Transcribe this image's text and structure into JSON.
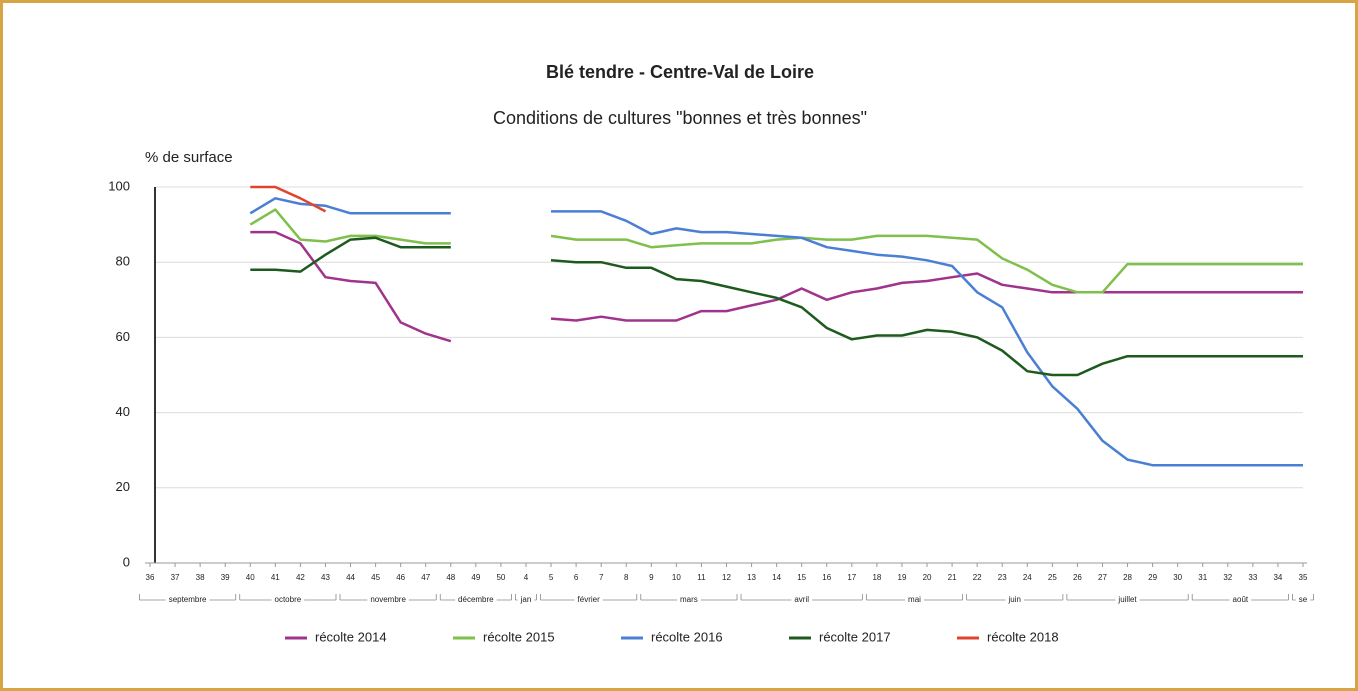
{
  "chart_data": {
    "type": "line",
    "title": "Blé tendre - Centre-Val de Loire",
    "subtitle": "Conditions de cultures \"bonnes et très bonnes\"",
    "y_label": "% de surface",
    "categories": [
      "36",
      "37",
      "38",
      "39",
      "40",
      "41",
      "42",
      "43",
      "44",
      "45",
      "46",
      "47",
      "48",
      "49",
      "50",
      "4",
      "5",
      "6",
      "7",
      "8",
      "9",
      "10",
      "11",
      "12",
      "13",
      "14",
      "15",
      "16",
      "17",
      "18",
      "19",
      "20",
      "21",
      "22",
      "23",
      "24",
      "25",
      "26",
      "27",
      "28",
      "29",
      "30",
      "31",
      "32",
      "33",
      "34",
      "35"
    ],
    "months": [
      {
        "label": "septembre",
        "span": 4
      },
      {
        "label": "octobre",
        "span": 4
      },
      {
        "label": "novembre",
        "span": 4
      },
      {
        "label": "décembre",
        "span": 3
      },
      {
        "label": "jan",
        "span": 1
      },
      {
        "label": "février",
        "span": 4
      },
      {
        "label": "mars",
        "span": 4
      },
      {
        "label": "avril",
        "span": 5
      },
      {
        "label": "mai",
        "span": 4
      },
      {
        "label": "juin",
        "span": 4
      },
      {
        "label": "juillet",
        "span": 5
      },
      {
        "label": "août",
        "span": 4
      },
      {
        "label": "se",
        "span": 1
      }
    ],
    "ylim": [
      0,
      100
    ],
    "yticks": [
      0,
      20,
      40,
      60,
      80,
      100
    ],
    "grid": true,
    "legend": "bottom",
    "series": [
      {
        "name": "récolte 2014",
        "color": "#a0338c",
        "values": [
          null,
          null,
          null,
          null,
          88,
          88,
          85,
          76,
          75,
          74.5,
          64,
          61,
          59,
          null,
          null,
          null,
          65,
          64.5,
          65.5,
          64.5,
          64.5,
          64.5,
          67,
          67,
          68.5,
          70,
          73,
          70,
          72,
          73,
          74.5,
          75,
          76,
          77,
          74,
          73,
          72,
          72,
          72,
          72,
          72,
          72,
          72,
          72,
          72,
          72,
          72
        ]
      },
      {
        "name": "récolte 2015",
        "color": "#7fbf4b",
        "values": [
          null,
          null,
          null,
          null,
          90,
          94,
          86,
          85.5,
          87,
          87,
          86,
          85,
          85,
          null,
          null,
          null,
          87,
          86,
          86,
          86,
          84,
          84.5,
          85,
          85,
          85,
          86,
          86.5,
          86,
          86,
          87,
          87,
          87,
          86.5,
          86,
          81,
          78,
          74,
          72,
          72,
          79.5,
          79.5,
          79.5,
          79.5,
          79.5,
          79.5,
          79.5,
          79.5
        ]
      },
      {
        "name": "récolte 2016",
        "color": "#4a7fd4",
        "values": [
          null,
          null,
          null,
          null,
          93,
          97,
          95.5,
          95,
          93,
          93,
          93,
          93,
          93,
          null,
          null,
          null,
          93.5,
          93.5,
          93.5,
          91,
          87.5,
          89,
          88,
          88,
          87.5,
          87,
          86.5,
          84,
          83,
          82,
          81.5,
          80.5,
          79,
          72,
          68,
          56,
          47,
          41,
          32.5,
          27.5,
          26,
          26,
          26,
          26,
          26,
          26,
          26
        ]
      },
      {
        "name": "récolte 2017",
        "color": "#1e5a1e",
        "values": [
          null,
          null,
          null,
          null,
          78,
          78,
          77.5,
          82,
          86,
          86.5,
          84,
          84,
          84,
          null,
          null,
          null,
          80.5,
          80,
          80,
          78.5,
          78.5,
          75.5,
          75,
          73.5,
          72,
          70.5,
          68,
          62.5,
          59.5,
          60.5,
          60.5,
          62,
          61.5,
          60,
          56.5,
          51,
          50,
          50,
          53,
          55,
          55,
          55,
          55,
          55,
          55,
          55,
          55
        ]
      },
      {
        "name": "récolte 2018",
        "color": "#e0452c",
        "values": [
          null,
          null,
          null,
          null,
          100,
          100,
          97,
          93.5,
          null,
          null,
          null,
          null,
          null,
          null,
          null,
          null,
          null,
          null,
          null,
          null,
          null,
          null,
          null,
          null,
          null,
          null,
          null,
          null,
          null,
          null,
          null,
          null,
          null,
          null,
          null,
          null,
          null,
          null,
          null,
          null,
          null,
          null,
          null,
          null,
          null,
          null,
          null
        ]
      }
    ]
  }
}
